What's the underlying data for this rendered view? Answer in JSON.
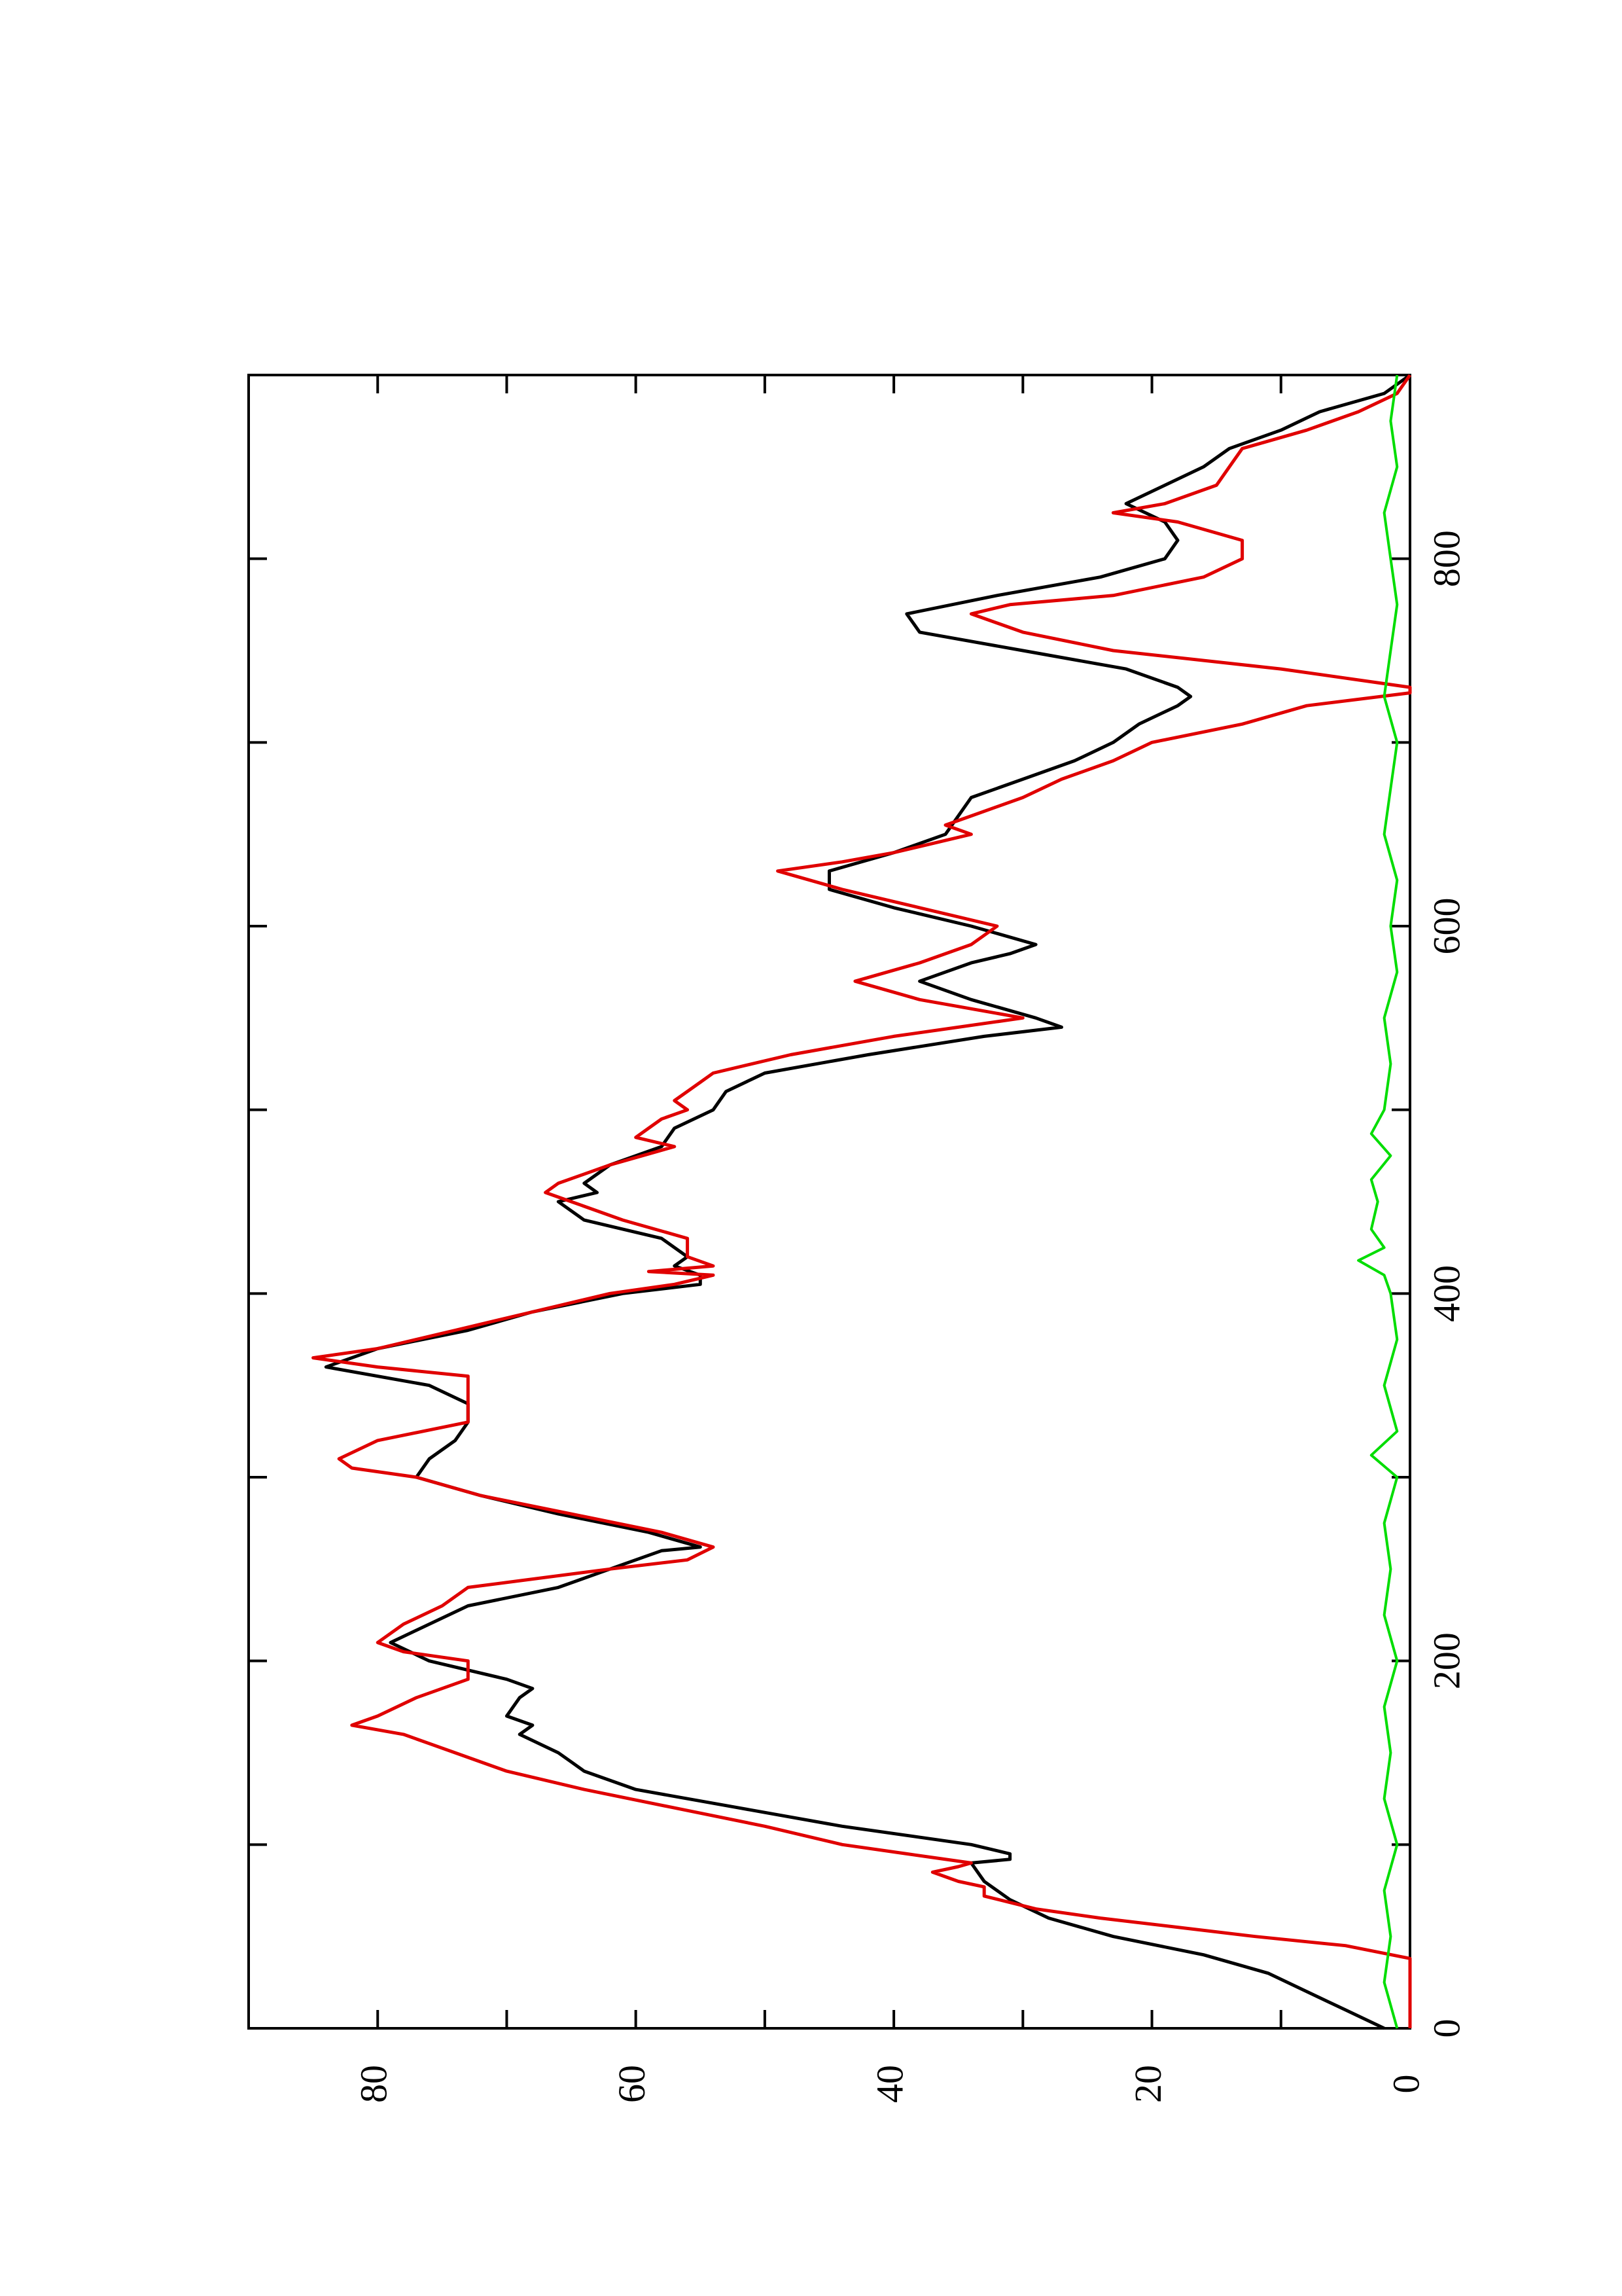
{
  "chart_data": {
    "type": "line",
    "orientation": "rotated-90-ccw",
    "title": "",
    "xlabel": "",
    "ylabel": "",
    "xlim": [
      0,
      900
    ],
    "ylim": [
      0,
      90
    ],
    "x_ticks": [
      0,
      200,
      400,
      600,
      800
    ],
    "x_minor_ticks": [
      100,
      300,
      500,
      700
    ],
    "y_ticks": [
      0,
      20,
      40,
      60,
      80
    ],
    "y_minor_ticks": [
      10,
      30,
      50,
      70
    ],
    "x_tick_labels": [
      "0",
      "200",
      "400",
      "600",
      "800"
    ],
    "y_tick_labels": [
      "0",
      "20",
      "40",
      "60",
      "80"
    ],
    "grid": false,
    "legend": "none",
    "series": [
      {
        "color": "#000000",
        "x": [
          0,
          10,
          20,
          30,
          40,
          50,
          60,
          70,
          80,
          90,
          92,
          95,
          100,
          110,
          120,
          130,
          140,
          145,
          150,
          160,
          165,
          170,
          180,
          185,
          190,
          200,
          210,
          220,
          230,
          240,
          250,
          260,
          262,
          270,
          280,
          290,
          300,
          310,
          320,
          330,
          340,
          350,
          360,
          370,
          380,
          390,
          400,
          405,
          410,
          415,
          420,
          430,
          440,
          450,
          455,
          460,
          470,
          480,
          490,
          500,
          510,
          520,
          530,
          540,
          545,
          550,
          560,
          570,
          580,
          585,
          590,
          600,
          610,
          620,
          630,
          640,
          650,
          660,
          670,
          680,
          690,
          700,
          710,
          720,
          725,
          730,
          740,
          750,
          760,
          770,
          780,
          790,
          800,
          810,
          820,
          830,
          840,
          850,
          860,
          870,
          880,
          890,
          900
        ],
        "values": [
          2,
          5,
          8,
          11,
          16,
          23,
          28,
          31,
          33,
          34,
          31,
          31,
          34,
          44,
          52,
          60,
          64,
          65,
          66,
          69,
          68,
          70,
          69,
          68,
          70,
          76,
          79,
          76,
          73,
          66,
          62,
          58,
          55,
          59,
          66,
          72,
          77,
          76,
          74,
          73,
          73,
          76,
          84,
          80,
          73,
          68,
          61,
          55,
          55,
          57,
          56,
          58,
          64,
          66,
          63,
          64,
          62,
          58,
          57,
          54,
          53,
          50,
          42,
          33,
          27,
          29,
          34,
          38,
          34,
          31,
          29,
          34,
          40,
          45,
          45,
          40,
          36,
          35,
          34,
          30,
          26,
          23,
          21,
          18,
          17,
          18,
          22,
          30,
          38,
          39,
          32,
          24,
          19,
          18,
          19,
          22,
          19,
          16,
          14,
          10,
          7,
          2,
          0
        ]
      },
      {
        "color": "#e00000",
        "x": [
          0,
          38,
          45,
          50,
          55,
          60,
          65,
          72,
          77,
          80,
          85,
          88,
          90,
          93,
          95,
          100,
          110,
          120,
          130,
          140,
          150,
          160,
          165,
          170,
          180,
          190,
          200,
          205,
          210,
          220,
          230,
          240,
          250,
          255,
          262,
          270,
          280,
          290,
          300,
          305,
          310,
          320,
          330,
          340,
          350,
          355,
          360,
          365,
          370,
          380,
          390,
          400,
          405,
          410,
          412,
          415,
          420,
          430,
          440,
          450,
          455,
          460,
          470,
          480,
          485,
          490,
          495,
          500,
          505,
          510,
          515,
          520,
          530,
          540,
          545,
          550,
          560,
          570,
          580,
          590,
          600,
          610,
          620,
          630,
          635,
          640,
          650,
          655,
          660,
          670,
          680,
          690,
          700,
          710,
          720,
          727,
          730,
          740,
          750,
          760,
          770,
          775,
          780,
          790,
          800,
          810,
          820,
          825,
          830,
          840,
          850,
          860,
          870,
          880,
          890,
          900
        ],
        "values": [
          0,
          0,
          5,
          12,
          18,
          24,
          29,
          33,
          33,
          35,
          37,
          35,
          34,
          37,
          39,
          44,
          50,
          57,
          64,
          70,
          74,
          78,
          82,
          80,
          77,
          73,
          73,
          78,
          80,
          78,
          75,
          73,
          62,
          56,
          54,
          58,
          65,
          72,
          77,
          82,
          83,
          80,
          73,
          73,
          73,
          73,
          80,
          85,
          80,
          74,
          68,
          62,
          57,
          54,
          59,
          54,
          56,
          56,
          61,
          65,
          67,
          66,
          62,
          57,
          60,
          59,
          58,
          56,
          57,
          56,
          55,
          54,
          48,
          40,
          35,
          30,
          38,
          43,
          38,
          34,
          32,
          38,
          44,
          49,
          44,
          40,
          34,
          36,
          34,
          30,
          27,
          23,
          20,
          13,
          8,
          0,
          0,
          10,
          23,
          30,
          34,
          31,
          23,
          16,
          13,
          13,
          18,
          23,
          19,
          15,
          14,
          13,
          8,
          4,
          1,
          0
        ]
      },
      {
        "color": "#00dd00",
        "x": [
          0,
          25,
          50,
          75,
          100,
          125,
          150,
          175,
          200,
          225,
          250,
          275,
          300,
          312,
          325,
          350,
          375,
          400,
          410,
          418,
          425,
          435,
          450,
          462,
          475,
          487,
          500,
          525,
          550,
          575,
          600,
          625,
          650,
          675,
          700,
          725,
          750,
          775,
          800,
          825,
          850,
          875,
          900
        ],
        "values": [
          1,
          2,
          1.5,
          2,
          1,
          2,
          1.5,
          2,
          1,
          2,
          1.5,
          2,
          1,
          3,
          1,
          2,
          1,
          1.5,
          2,
          4,
          2,
          3,
          2.5,
          3,
          1.5,
          3,
          2,
          1.5,
          2,
          1,
          1.5,
          1,
          2,
          1.5,
          1,
          2,
          1.5,
          1,
          1.5,
          2,
          1,
          1.5,
          1
        ]
      }
    ]
  }
}
